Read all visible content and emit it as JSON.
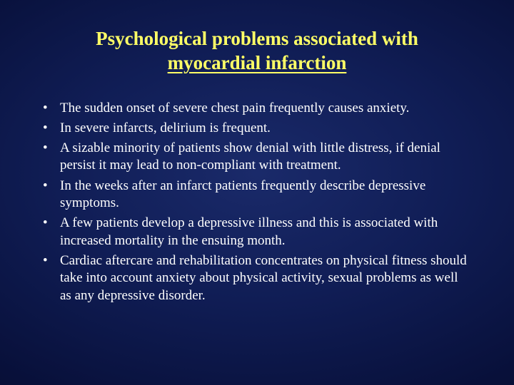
{
  "slide": {
    "title_line1": "Psychological problems associated with",
    "title_underlined": "myocardial infarction",
    "title_color": "#ffff66",
    "title_fontsize": 27,
    "bullet_items": [
      "The sudden onset of severe chest pain frequently causes anxiety.",
      " In severe infarcts, delirium is frequent.",
      "A sizable minority of patients show denial with little distress, if denial persist it may lead to non-compliant with treatment.",
      " In the weeks after an infarct patients frequently describe depressive symptoms.",
      "A few patients develop a depressive illness and this is associated with increased mortality in the ensuing month.",
      "Cardiac aftercare and rehabilitation concentrates on physical fitness should take into account anxiety about physical activity, sexual problems as well as any depressive disorder."
    ],
    "body_color": "#ffffff",
    "body_fontsize": 19,
    "background_gradient_center": "#1a2a6a",
    "background_gradient_edge": "#020618",
    "slide_width": 720,
    "slide_height": 540
  }
}
